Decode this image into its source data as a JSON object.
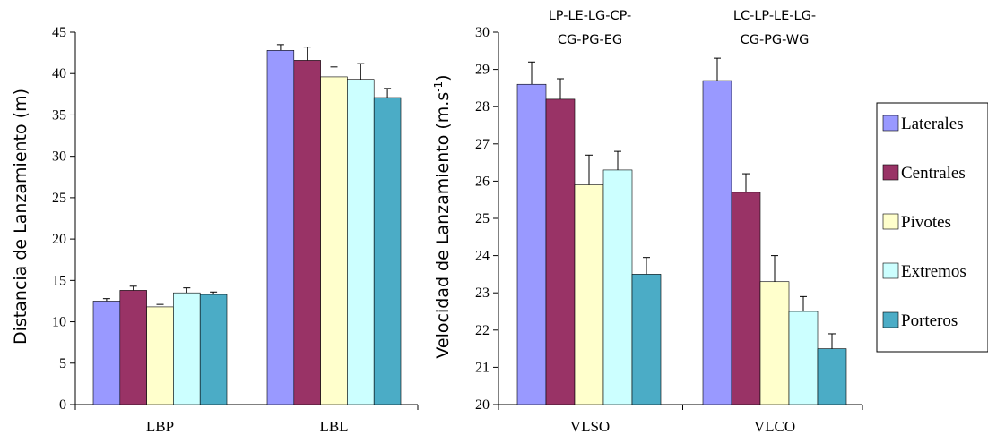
{
  "colors": {
    "Laterales": "#9999ff",
    "Centrales": "#993366",
    "Pivotes": "#ffffcc",
    "Extremos": "#ccffff",
    "Porteros": "#4bacc6"
  },
  "legend": [
    "Laterales",
    "Centrales",
    "Pivotes",
    "Extremos",
    "Porteros"
  ],
  "chart_data": [
    {
      "type": "bar",
      "categories": [
        "LBP",
        "LBL"
      ],
      "series": [
        {
          "name": "Laterales",
          "values": [
            12.5,
            42.8
          ],
          "errors": [
            0.3,
            0.7
          ]
        },
        {
          "name": "Centrales",
          "values": [
            13.8,
            41.6
          ],
          "errors": [
            0.5,
            1.6
          ]
        },
        {
          "name": "Pivotes",
          "values": [
            11.8,
            39.6
          ],
          "errors": [
            0.3,
            1.2
          ]
        },
        {
          "name": "Extremos",
          "values": [
            13.5,
            39.3
          ],
          "errors": [
            0.6,
            1.9
          ]
        },
        {
          "name": "Porteros",
          "values": [
            13.3,
            37.1
          ],
          "errors": [
            0.3,
            1.1
          ]
        }
      ],
      "ylabel": "Distancia de Lanzamiento (m)",
      "ylim": [
        0,
        45
      ],
      "yticks": [
        0,
        5,
        10,
        15,
        20,
        25,
        30,
        35,
        40,
        45
      ],
      "annotations": []
    },
    {
      "type": "bar",
      "categories": [
        "VLSO",
        "VLCO"
      ],
      "series": [
        {
          "name": "Laterales",
          "values": [
            28.6,
            28.7
          ],
          "errors": [
            0.6,
            0.6
          ]
        },
        {
          "name": "Centrales",
          "values": [
            28.2,
            25.7
          ],
          "errors": [
            0.55,
            0.5
          ]
        },
        {
          "name": "Pivotes",
          "values": [
            25.9,
            23.3
          ],
          "errors": [
            0.8,
            0.7
          ]
        },
        {
          "name": "Extremos",
          "values": [
            26.3,
            22.5
          ],
          "errors": [
            0.5,
            0.4
          ]
        },
        {
          "name": "Porteros",
          "values": [
            23.5,
            21.5
          ],
          "errors": [
            0.45,
            0.4
          ]
        }
      ],
      "ylabel_main": "Velocidad de Lanzamiento (m.s",
      "ylabel_sup": "-1",
      "ylabel_end": ")",
      "ylim": [
        20,
        30
      ],
      "yticks": [
        20,
        21,
        22,
        23,
        24,
        25,
        26,
        27,
        28,
        29,
        30
      ],
      "annotations": [
        {
          "category": "VLSO",
          "lines": [
            "LP-LE-LG-CP-",
            "CG-PG-EG"
          ]
        },
        {
          "category": "VLCO",
          "lines": [
            "LC-LP-LE-LG-",
            "CG-PG-WG"
          ]
        }
      ]
    }
  ]
}
